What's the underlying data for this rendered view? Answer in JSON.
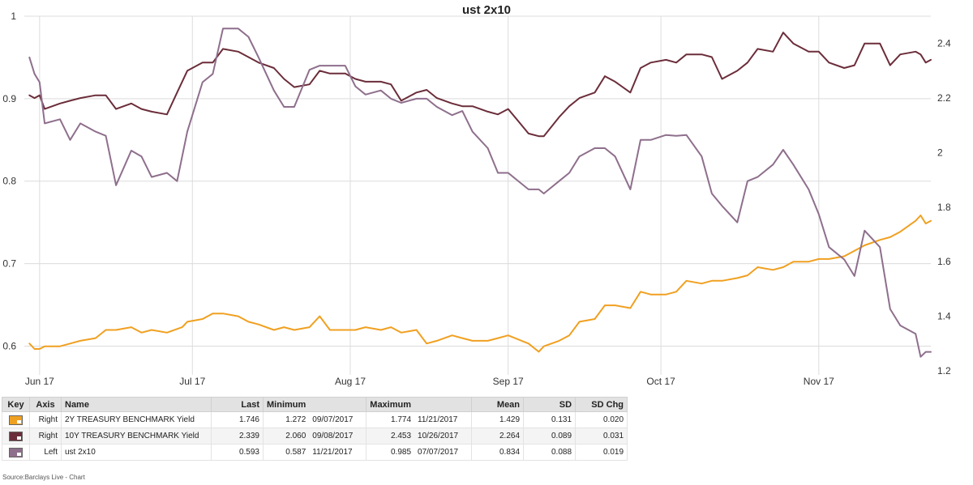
{
  "source_text": "Source:Barclays Live - Chart",
  "chart_data": {
    "type": "line",
    "title": "ust 2x10",
    "x_tick_labels": [
      "Jun 17",
      "Jul 17",
      "Aug 17",
      "Sep 17",
      "Oct 17",
      "Nov 17"
    ],
    "x_tick_dates": [
      "2017-06-01",
      "2017-07-01",
      "2017-08-01",
      "2017-09-01",
      "2017-10-01",
      "2017-11-01"
    ],
    "x_range": [
      "2017-05-29",
      "2017-11-23"
    ],
    "left_axis": {
      "range": [
        0.57,
        1.0
      ],
      "ticks": [
        "1",
        "0.9",
        "0.8",
        "0.7",
        "0.6"
      ],
      "tick_values": [
        1.0,
        0.9,
        0.8,
        0.7,
        0.6
      ]
    },
    "right_axis": {
      "range": [
        1.2,
        2.5
      ],
      "ticks": [
        "2.4",
        "2.2",
        "2",
        "1.8",
        "1.6",
        "1.4",
        "1.2"
      ],
      "tick_values": [
        2.4,
        2.2,
        2.0,
        1.8,
        1.6,
        1.4,
        1.2
      ]
    },
    "grid": true,
    "series": [
      {
        "name": "2Y TREASURY BENCHMARK Yield",
        "axis": "Right",
        "color": "#f0a020",
        "points": [
          [
            "2017-05-30",
            1.3
          ],
          [
            "2017-05-31",
            1.28
          ],
          [
            "2017-06-01",
            1.28
          ],
          [
            "2017-06-02",
            1.29
          ],
          [
            "2017-06-05",
            1.29
          ],
          [
            "2017-06-07",
            1.3
          ],
          [
            "2017-06-09",
            1.31
          ],
          [
            "2017-06-12",
            1.32
          ],
          [
            "2017-06-14",
            1.35
          ],
          [
            "2017-06-16",
            1.35
          ],
          [
            "2017-06-19",
            1.36
          ],
          [
            "2017-06-21",
            1.34
          ],
          [
            "2017-06-23",
            1.35
          ],
          [
            "2017-06-26",
            1.34
          ],
          [
            "2017-06-29",
            1.36
          ],
          [
            "2017-06-30",
            1.38
          ],
          [
            "2017-07-03",
            1.39
          ],
          [
            "2017-07-05",
            1.41
          ],
          [
            "2017-07-07",
            1.41
          ],
          [
            "2017-07-10",
            1.4
          ],
          [
            "2017-07-12",
            1.38
          ],
          [
            "2017-07-14",
            1.37
          ],
          [
            "2017-07-17",
            1.35
          ],
          [
            "2017-07-19",
            1.36
          ],
          [
            "2017-07-21",
            1.35
          ],
          [
            "2017-07-24",
            1.36
          ],
          [
            "2017-07-26",
            1.4
          ],
          [
            "2017-07-28",
            1.35
          ],
          [
            "2017-07-31",
            1.35
          ],
          [
            "2017-08-02",
            1.35
          ],
          [
            "2017-08-04",
            1.36
          ],
          [
            "2017-08-07",
            1.35
          ],
          [
            "2017-08-09",
            1.36
          ],
          [
            "2017-08-11",
            1.34
          ],
          [
            "2017-08-14",
            1.35
          ],
          [
            "2017-08-16",
            1.3
          ],
          [
            "2017-08-18",
            1.31
          ],
          [
            "2017-08-21",
            1.33
          ],
          [
            "2017-08-23",
            1.32
          ],
          [
            "2017-08-25",
            1.31
          ],
          [
            "2017-08-28",
            1.31
          ],
          [
            "2017-08-30",
            1.32
          ],
          [
            "2017-09-01",
            1.33
          ],
          [
            "2017-09-05",
            1.3
          ],
          [
            "2017-09-07",
            1.27
          ],
          [
            "2017-09-08",
            1.29
          ],
          [
            "2017-09-11",
            1.31
          ],
          [
            "2017-09-13",
            1.33
          ],
          [
            "2017-09-15",
            1.38
          ],
          [
            "2017-09-18",
            1.39
          ],
          [
            "2017-09-20",
            1.44
          ],
          [
            "2017-09-22",
            1.44
          ],
          [
            "2017-09-25",
            1.43
          ],
          [
            "2017-09-27",
            1.49
          ],
          [
            "2017-09-29",
            1.48
          ],
          [
            "2017-10-02",
            1.48
          ],
          [
            "2017-10-04",
            1.49
          ],
          [
            "2017-10-06",
            1.53
          ],
          [
            "2017-10-09",
            1.52
          ],
          [
            "2017-10-11",
            1.53
          ],
          [
            "2017-10-13",
            1.53
          ],
          [
            "2017-10-16",
            1.54
          ],
          [
            "2017-10-18",
            1.55
          ],
          [
            "2017-10-20",
            1.58
          ],
          [
            "2017-10-23",
            1.57
          ],
          [
            "2017-10-25",
            1.58
          ],
          [
            "2017-10-27",
            1.6
          ],
          [
            "2017-10-30",
            1.6
          ],
          [
            "2017-11-01",
            1.61
          ],
          [
            "2017-11-03",
            1.61
          ],
          [
            "2017-11-06",
            1.62
          ],
          [
            "2017-11-08",
            1.64
          ],
          [
            "2017-11-10",
            1.66
          ],
          [
            "2017-11-13",
            1.68
          ],
          [
            "2017-11-15",
            1.69
          ],
          [
            "2017-11-17",
            1.71
          ],
          [
            "2017-11-20",
            1.75
          ],
          [
            "2017-11-21",
            1.77
          ],
          [
            "2017-11-22",
            1.74
          ],
          [
            "2017-11-23",
            1.75
          ]
        ]
      },
      {
        "name": "10Y TREASURY BENCHMARK Yield",
        "axis": "Right",
        "color": "#6b2d3a",
        "points": [
          [
            "2017-05-30",
            2.21
          ],
          [
            "2017-05-31",
            2.2
          ],
          [
            "2017-06-01",
            2.21
          ],
          [
            "2017-06-02",
            2.16
          ],
          [
            "2017-06-05",
            2.18
          ],
          [
            "2017-06-07",
            2.19
          ],
          [
            "2017-06-09",
            2.2
          ],
          [
            "2017-06-12",
            2.21
          ],
          [
            "2017-06-14",
            2.21
          ],
          [
            "2017-06-16",
            2.16
          ],
          [
            "2017-06-19",
            2.18
          ],
          [
            "2017-06-21",
            2.16
          ],
          [
            "2017-06-23",
            2.15
          ],
          [
            "2017-06-26",
            2.14
          ],
          [
            "2017-06-28",
            2.22
          ],
          [
            "2017-06-30",
            2.3
          ],
          [
            "2017-07-03",
            2.33
          ],
          [
            "2017-07-05",
            2.33
          ],
          [
            "2017-07-07",
            2.38
          ],
          [
            "2017-07-10",
            2.37
          ],
          [
            "2017-07-12",
            2.35
          ],
          [
            "2017-07-14",
            2.33
          ],
          [
            "2017-07-17",
            2.31
          ],
          [
            "2017-07-19",
            2.27
          ],
          [
            "2017-07-21",
            2.24
          ],
          [
            "2017-07-24",
            2.25
          ],
          [
            "2017-07-26",
            2.3
          ],
          [
            "2017-07-28",
            2.29
          ],
          [
            "2017-07-31",
            2.29
          ],
          [
            "2017-08-02",
            2.27
          ],
          [
            "2017-08-04",
            2.26
          ],
          [
            "2017-08-07",
            2.26
          ],
          [
            "2017-08-09",
            2.25
          ],
          [
            "2017-08-11",
            2.19
          ],
          [
            "2017-08-14",
            2.22
          ],
          [
            "2017-08-16",
            2.23
          ],
          [
            "2017-08-18",
            2.2
          ],
          [
            "2017-08-21",
            2.18
          ],
          [
            "2017-08-23",
            2.17
          ],
          [
            "2017-08-25",
            2.17
          ],
          [
            "2017-08-28",
            2.15
          ],
          [
            "2017-08-30",
            2.14
          ],
          [
            "2017-09-01",
            2.16
          ],
          [
            "2017-09-05",
            2.07
          ],
          [
            "2017-09-07",
            2.06
          ],
          [
            "2017-09-08",
            2.06
          ],
          [
            "2017-09-11",
            2.13
          ],
          [
            "2017-09-13",
            2.17
          ],
          [
            "2017-09-15",
            2.2
          ],
          [
            "2017-09-18",
            2.22
          ],
          [
            "2017-09-20",
            2.28
          ],
          [
            "2017-09-22",
            2.26
          ],
          [
            "2017-09-25",
            2.22
          ],
          [
            "2017-09-27",
            2.31
          ],
          [
            "2017-09-29",
            2.33
          ],
          [
            "2017-10-02",
            2.34
          ],
          [
            "2017-10-04",
            2.33
          ],
          [
            "2017-10-06",
            2.36
          ],
          [
            "2017-10-09",
            2.36
          ],
          [
            "2017-10-11",
            2.35
          ],
          [
            "2017-10-13",
            2.27
          ],
          [
            "2017-10-16",
            2.3
          ],
          [
            "2017-10-18",
            2.33
          ],
          [
            "2017-10-20",
            2.38
          ],
          [
            "2017-10-23",
            2.37
          ],
          [
            "2017-10-25",
            2.44
          ],
          [
            "2017-10-27",
            2.4
          ],
          [
            "2017-10-30",
            2.37
          ],
          [
            "2017-11-01",
            2.37
          ],
          [
            "2017-11-03",
            2.33
          ],
          [
            "2017-11-06",
            2.31
          ],
          [
            "2017-11-08",
            2.32
          ],
          [
            "2017-11-10",
            2.4
          ],
          [
            "2017-11-13",
            2.4
          ],
          [
            "2017-11-15",
            2.32
          ],
          [
            "2017-11-17",
            2.36
          ],
          [
            "2017-11-20",
            2.37
          ],
          [
            "2017-11-21",
            2.36
          ],
          [
            "2017-11-22",
            2.33
          ],
          [
            "2017-11-23",
            2.34
          ]
        ]
      },
      {
        "name": "ust 2x10",
        "axis": "Left",
        "color": "#8e6f8c",
        "points": [
          [
            "2017-05-30",
            0.95
          ],
          [
            "2017-05-31",
            0.93
          ],
          [
            "2017-06-01",
            0.92
          ],
          [
            "2017-06-02",
            0.87
          ],
          [
            "2017-06-05",
            0.875
          ],
          [
            "2017-06-07",
            0.85
          ],
          [
            "2017-06-09",
            0.87
          ],
          [
            "2017-06-12",
            0.86
          ],
          [
            "2017-06-14",
            0.855
          ],
          [
            "2017-06-16",
            0.795
          ],
          [
            "2017-06-19",
            0.837
          ],
          [
            "2017-06-21",
            0.83
          ],
          [
            "2017-06-23",
            0.805
          ],
          [
            "2017-06-26",
            0.81
          ],
          [
            "2017-06-28",
            0.8
          ],
          [
            "2017-06-30",
            0.86
          ],
          [
            "2017-07-03",
            0.92
          ],
          [
            "2017-07-05",
            0.93
          ],
          [
            "2017-07-07",
            0.985
          ],
          [
            "2017-07-10",
            0.985
          ],
          [
            "2017-07-12",
            0.975
          ],
          [
            "2017-07-14",
            0.95
          ],
          [
            "2017-07-17",
            0.91
          ],
          [
            "2017-07-19",
            0.89
          ],
          [
            "2017-07-21",
            0.89
          ],
          [
            "2017-07-24",
            0.935
          ],
          [
            "2017-07-26",
            0.94
          ],
          [
            "2017-07-28",
            0.94
          ],
          [
            "2017-07-31",
            0.94
          ],
          [
            "2017-08-02",
            0.915
          ],
          [
            "2017-08-04",
            0.905
          ],
          [
            "2017-08-07",
            0.91
          ],
          [
            "2017-08-09",
            0.9
          ],
          [
            "2017-08-11",
            0.895
          ],
          [
            "2017-08-14",
            0.9
          ],
          [
            "2017-08-16",
            0.9
          ],
          [
            "2017-08-18",
            0.89
          ],
          [
            "2017-08-21",
            0.88
          ],
          [
            "2017-08-23",
            0.885
          ],
          [
            "2017-08-25",
            0.86
          ],
          [
            "2017-08-28",
            0.84
          ],
          [
            "2017-08-30",
            0.81
          ],
          [
            "2017-09-01",
            0.81
          ],
          [
            "2017-09-05",
            0.79
          ],
          [
            "2017-09-07",
            0.79
          ],
          [
            "2017-09-08",
            0.785
          ],
          [
            "2017-09-11",
            0.8
          ],
          [
            "2017-09-13",
            0.81
          ],
          [
            "2017-09-15",
            0.83
          ],
          [
            "2017-09-18",
            0.84
          ],
          [
            "2017-09-20",
            0.84
          ],
          [
            "2017-09-22",
            0.83
          ],
          [
            "2017-09-25",
            0.79
          ],
          [
            "2017-09-27",
            0.85
          ],
          [
            "2017-09-29",
            0.85
          ],
          [
            "2017-10-02",
            0.856
          ],
          [
            "2017-10-04",
            0.855
          ],
          [
            "2017-10-06",
            0.856
          ],
          [
            "2017-10-09",
            0.83
          ],
          [
            "2017-10-11",
            0.785
          ],
          [
            "2017-10-13",
            0.77
          ],
          [
            "2017-10-16",
            0.75
          ],
          [
            "2017-10-18",
            0.8
          ],
          [
            "2017-10-20",
            0.805
          ],
          [
            "2017-10-23",
            0.82
          ],
          [
            "2017-10-25",
            0.838
          ],
          [
            "2017-10-27",
            0.82
          ],
          [
            "2017-10-30",
            0.79
          ],
          [
            "2017-11-01",
            0.76
          ],
          [
            "2017-11-03",
            0.72
          ],
          [
            "2017-11-06",
            0.705
          ],
          [
            "2017-11-08",
            0.685
          ],
          [
            "2017-11-10",
            0.74
          ],
          [
            "2017-11-13",
            0.72
          ],
          [
            "2017-11-15",
            0.645
          ],
          [
            "2017-11-17",
            0.625
          ],
          [
            "2017-11-20",
            0.615
          ],
          [
            "2017-11-21",
            0.587
          ],
          [
            "2017-11-22",
            0.593
          ],
          [
            "2017-11-23",
            0.593
          ]
        ]
      }
    ]
  },
  "legend_table": {
    "headers": [
      "Key",
      "Axis",
      "Name",
      "Last",
      "Minimum",
      "",
      "Maximum",
      "",
      "Mean",
      "SD",
      "SD Chg"
    ],
    "rows": [
      {
        "color": "#f0a020",
        "axis": "Right",
        "name": "2Y TREASURY BENCHMARK Yield",
        "last": "1.746",
        "min_val": "1.272",
        "min_date": "09/07/2017",
        "max_val": "1.774",
        "max_date": "11/21/2017",
        "mean": "1.429",
        "sd": "0.131",
        "sd_chg": "0.020"
      },
      {
        "color": "#6b2d3a",
        "axis": "Right",
        "name": "10Y TREASURY BENCHMARK Yield",
        "last": "2.339",
        "min_val": "2.060",
        "min_date": "09/08/2017",
        "max_val": "2.453",
        "max_date": "10/26/2017",
        "mean": "2.264",
        "sd": "0.089",
        "sd_chg": "0.031"
      },
      {
        "color": "#8e6f8c",
        "axis": "Left",
        "name": "ust 2x10",
        "last": "0.593",
        "min_val": "0.587",
        "min_date": "11/21/2017",
        "max_val": "0.985",
        "max_date": "07/07/2017",
        "mean": "0.834",
        "sd": "0.088",
        "sd_chg": "0.019"
      }
    ]
  }
}
